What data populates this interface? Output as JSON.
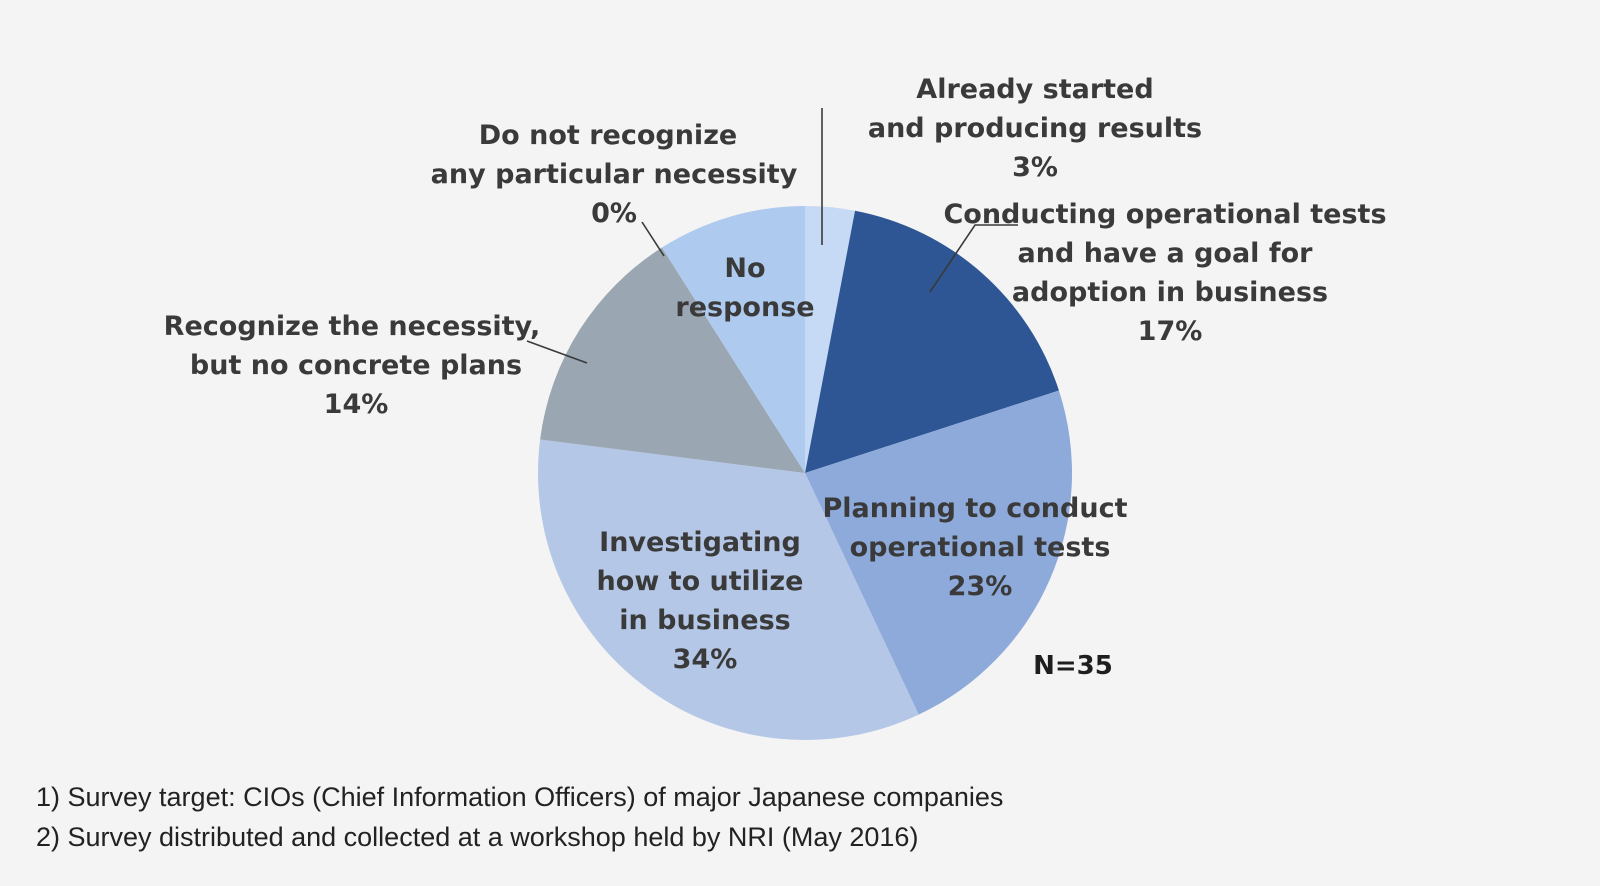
{
  "chart_data": {
    "type": "pie",
    "sample_size": "N=35",
    "slices": [
      {
        "key": "already",
        "label_lines": [
          "Already started",
          "and producing results"
        ],
        "value_text": "3%",
        "value": 3,
        "color": "#c6daf5"
      },
      {
        "key": "conducting",
        "label_lines": [
          "Conducting operational tests",
          "and have a goal for",
          "adoption in business"
        ],
        "value_text": "17%",
        "value": 17,
        "color": "#2e5594"
      },
      {
        "key": "planning",
        "label_lines": [
          "Planning to conduct",
          "operational tests"
        ],
        "value_text": "23%",
        "value": 23,
        "color": "#8eaadb"
      },
      {
        "key": "investigating",
        "label_lines": [
          "Investigating",
          "how to utilize",
          "in business"
        ],
        "value_text": "34%",
        "value": 34,
        "color": "#b4c7e7"
      },
      {
        "key": "recognize",
        "label_lines": [
          "Recognize the necessity,",
          "but no concrete plans"
        ],
        "value_text": "14%",
        "value": 14,
        "color": "#9aa6b2"
      },
      {
        "key": "donot",
        "label_lines": [
          "Do not recognize",
          "any particular necessity"
        ],
        "value_text": "0%",
        "value": 0,
        "color": "#9aa6b2"
      },
      {
        "key": "noresponse",
        "label_lines": [
          "No",
          "response"
        ],
        "value_text": "",
        "value": 9,
        "color": "#aecbef"
      }
    ]
  },
  "notes": [
    "1) Survey target: CIOs (Chief Information Officers) of major Japanese companies",
    "2) Survey distributed and collected at a workshop held by NRI (May 2016)"
  ]
}
